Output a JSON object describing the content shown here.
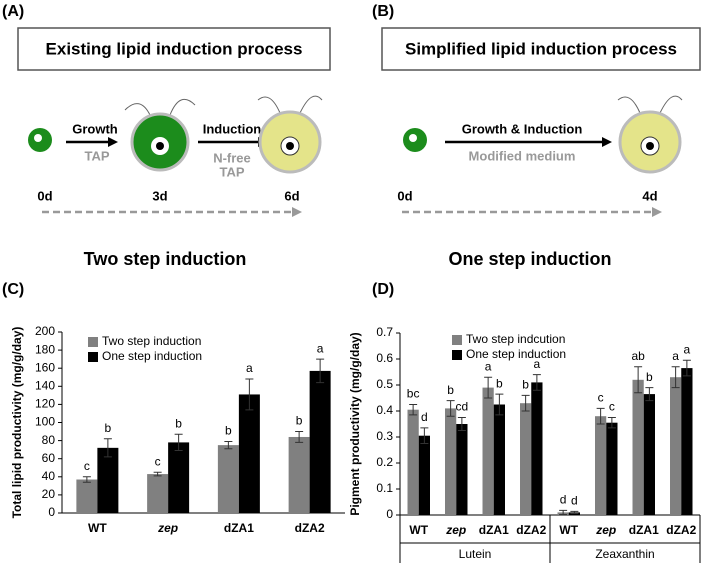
{
  "panels": [
    {
      "label": "(A)",
      "title": "Existing lipid induction process",
      "step1": "Growth",
      "step1_medium": "TAP",
      "step2": "Induction",
      "step2_medium_line1": "N-free",
      "step2_medium_line2": "TAP",
      "times": [
        "0d",
        "3d",
        "6d"
      ],
      "caption": "Two step induction"
    },
    {
      "label": "(B)",
      "title": "Simplified lipid induction process",
      "step1": "Growth & Induction",
      "step1_medium": "Modified medium",
      "times": [
        "0d",
        "4d"
      ],
      "caption": "One step induction"
    }
  ],
  "chart_data": [
    {
      "type": "bar",
      "panel_label": "(C)",
      "y_label": "Total lipid productivity  (mg/g/day)",
      "categories": [
        "WT",
        "zep",
        "dZA1",
        "dZA2"
      ],
      "category_styles": [
        "normal",
        "italic",
        "normal",
        "normal"
      ],
      "series": [
        {
          "name": "Two step induction",
          "color": "#808080",
          "values": [
            37,
            43,
            75,
            84
          ],
          "errors": [
            3,
            2,
            4,
            6
          ],
          "letters": [
            "c",
            "c",
            "b",
            "b"
          ]
        },
        {
          "name": "One step induction",
          "color": "#000000",
          "values": [
            72,
            78,
            131,
            157
          ],
          "errors": [
            10,
            9,
            17,
            13
          ],
          "letters": [
            "b",
            "b",
            "a",
            "a"
          ]
        }
      ],
      "ylim": [
        0,
        200
      ],
      "yticks": [
        0,
        20,
        40,
        60,
        80,
        100,
        120,
        140,
        160,
        180,
        200
      ]
    },
    {
      "type": "bar",
      "panel_label": "(D)",
      "y_label": "Pigment productivity (mg/g/day)",
      "categories": [
        "WT",
        "zep",
        "dZA1",
        "dZA2",
        "WT",
        "zep",
        "dZA1",
        "dZA2"
      ],
      "category_styles": [
        "normal",
        "italic",
        "normal",
        "normal",
        "normal",
        "italic",
        "normal",
        "normal"
      ],
      "groups": [
        "Lutein",
        "Zeaxanthin"
      ],
      "series": [
        {
          "name": "Two step indcution",
          "color": "#808080",
          "values": [
            0.405,
            0.41,
            0.49,
            0.43,
            0.01,
            0.38,
            0.52,
            0.53
          ],
          "errors": [
            0.02,
            0.03,
            0.04,
            0.03,
            0.008,
            0.03,
            0.05,
            0.04
          ],
          "letters": [
            "bc",
            "b",
            "a",
            "b",
            "d",
            "c",
            "ab",
            "a"
          ]
        },
        {
          "name": "One step induction",
          "color": "#000000",
          "values": [
            0.305,
            0.35,
            0.425,
            0.51,
            0.01,
            0.355,
            0.465,
            0.565
          ],
          "errors": [
            0.03,
            0.025,
            0.04,
            0.03,
            0.004,
            0.02,
            0.025,
            0.03
          ],
          "letters": [
            "d",
            "cd",
            "b",
            "a",
            "d",
            "c",
            "b",
            "a"
          ]
        }
      ],
      "ylim": [
        0,
        0.7
      ],
      "yticks": [
        0,
        0.1,
        0.2,
        0.3,
        0.4,
        0.5,
        0.6,
        0.7
      ]
    }
  ]
}
